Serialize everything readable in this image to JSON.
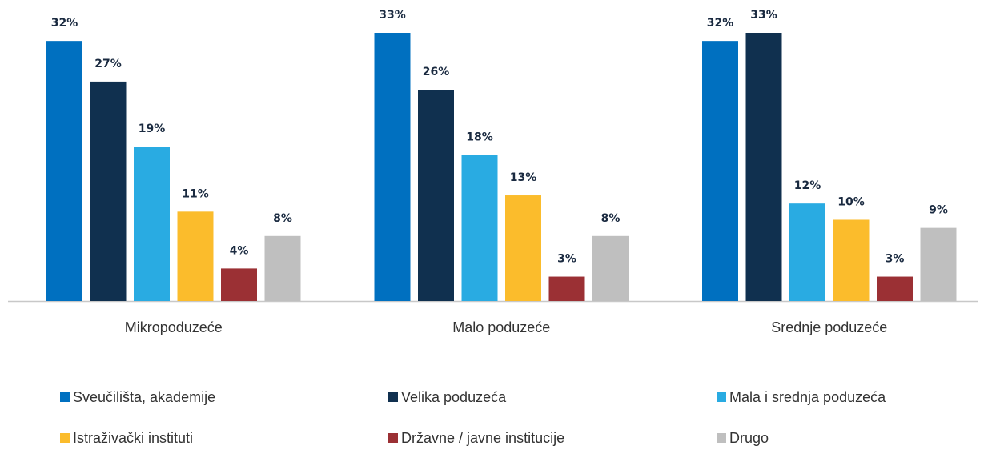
{
  "chart_data": {
    "type": "bar",
    "categories": [
      "Mikropoduzeće",
      "Malo poduzeće",
      "Srednje poduzeće"
    ],
    "series": [
      {
        "name": "Sveučilišta, akademije",
        "color": "#0070c0",
        "values": [
          32,
          33,
          32
        ],
        "value_labels": [
          "32%",
          "33%",
          "32%"
        ]
      },
      {
        "name": "Velika poduzeća",
        "color": "#10304f",
        "values": [
          27,
          26,
          33
        ],
        "value_labels": [
          "27%",
          "26%",
          "33%"
        ]
      },
      {
        "name": "Mala i srednja poduzeća",
        "color": "#29abe2",
        "values": [
          19,
          18,
          12
        ],
        "value_labels": [
          "19%",
          "18%",
          "12%"
        ]
      },
      {
        "name": "Istraživački instituti",
        "color": "#fbbc2c",
        "values": [
          11,
          13,
          10
        ],
        "value_labels": [
          "11%",
          "13%",
          "10%"
        ]
      },
      {
        "name": "Državne / javne institucije",
        "color": "#9b3034",
        "values": [
          4,
          3,
          3
        ],
        "value_labels": [
          "4%",
          "3%",
          "3%"
        ]
      },
      {
        "name": "Drugo",
        "color": "#bfbfbf",
        "values": [
          8,
          8,
          9
        ],
        "value_labels": [
          "8%",
          "8%",
          "9%"
        ]
      }
    ]
  }
}
